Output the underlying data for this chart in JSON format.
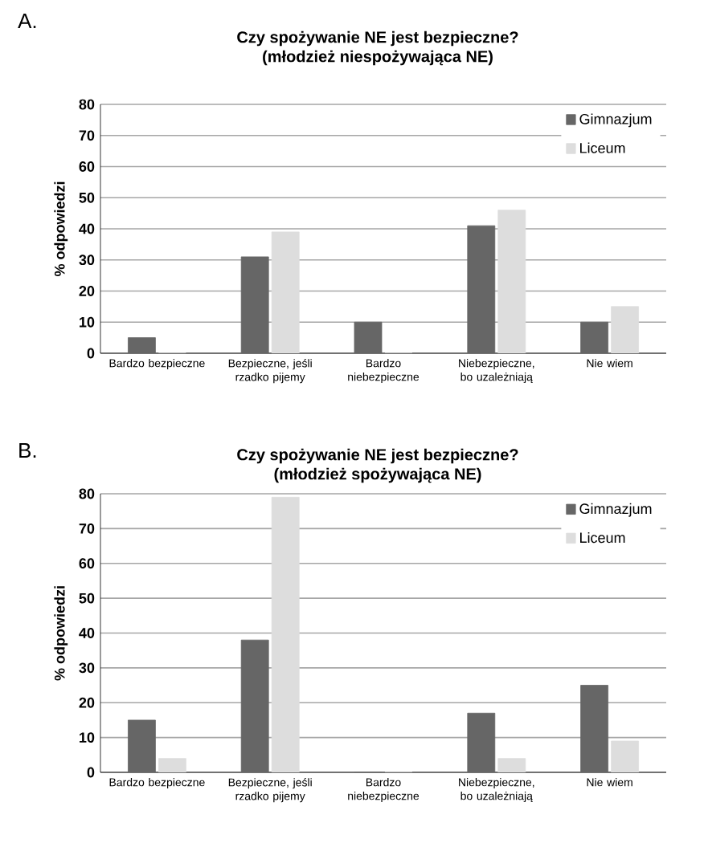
{
  "chart_data": [
    {
      "type": "bar",
      "title": "Czy spożywanie NE jest bezpieczne?",
      "subtitle": "(młodzież niespożywająca NE)",
      "ylabel": "% odpowiedzi",
      "annotations": [
        "A."
      ],
      "categories": [
        "Bardzo bezpieczne",
        "Bezpieczne, jeśli rzadko pijemy",
        "Bardzo niebezpieczne",
        "Niebezpieczne, bo uzależniają",
        "Nie wiem"
      ],
      "series": [
        {
          "name": "Gimnazjum",
          "color": "#666666",
          "values": [
            5,
            31,
            10,
            41,
            10
          ]
        },
        {
          "name": "Liceum",
          "color": "#dddddd",
          "values": [
            0,
            39,
            0,
            46,
            15
          ]
        }
      ],
      "ylim": [
        0,
        80
      ],
      "yticks": [
        0,
        10,
        20,
        30,
        40,
        50,
        60,
        70,
        80
      ],
      "grid": "y",
      "legend": "top right"
    },
    {
      "type": "bar",
      "title": "Czy spożywanie NE jest bezpieczne?",
      "subtitle": "(młodzież spożywająca NE)",
      "ylabel": "% odpowiedzi",
      "annotations": [
        "B."
      ],
      "categories": [
        "Bardzo bezpieczne",
        "Bezpieczne, jeśli rzadko pijemy",
        "Bardzo niebezpieczne",
        "Niebezpieczne, bo uzależniają",
        "Nie wiem"
      ],
      "series": [
        {
          "name": "Gimnazjum",
          "color": "#666666",
          "values": [
            15,
            38,
            0,
            17,
            25
          ]
        },
        {
          "name": "Liceum",
          "color": "#dddddd",
          "values": [
            4,
            79,
            0,
            4,
            9
          ]
        }
      ],
      "ylim": [
        0,
        80
      ],
      "yticks": [
        0,
        10,
        20,
        30,
        40,
        50,
        60,
        70,
        80
      ],
      "grid": "y",
      "legend": "top right"
    }
  ]
}
